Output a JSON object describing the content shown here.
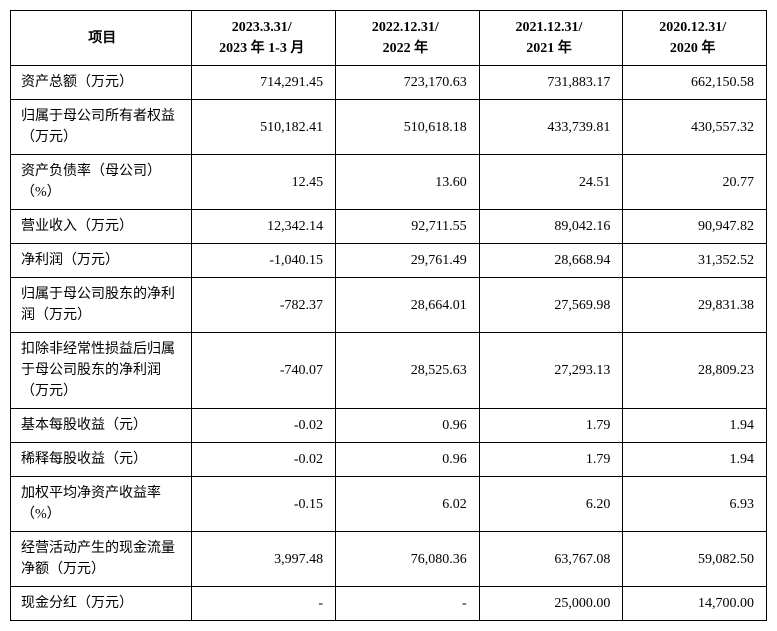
{
  "table": {
    "columns": [
      "项目",
      "2023.3.31/\n2023 年 1-3 月",
      "2022.12.31/\n2022 年",
      "2021.12.31/\n2021 年",
      "2020.12.31/\n2020 年"
    ],
    "rows": [
      {
        "label": "资产总额（万元）",
        "values": [
          "714,291.45",
          "723,170.63",
          "731,883.17",
          "662,150.58"
        ]
      },
      {
        "label": "归属于母公司所有者权益（万元）",
        "values": [
          "510,182.41",
          "510,618.18",
          "433,739.81",
          "430,557.32"
        ]
      },
      {
        "label": "资产负债率（母公司）（%）",
        "values": [
          "12.45",
          "13.60",
          "24.51",
          "20.77"
        ]
      },
      {
        "label": "营业收入（万元）",
        "values": [
          "12,342.14",
          "92,711.55",
          "89,042.16",
          "90,947.82"
        ]
      },
      {
        "label": "净利润（万元）",
        "values": [
          "-1,040.15",
          "29,761.49",
          "28,668.94",
          "31,352.52"
        ]
      },
      {
        "label": "归属于母公司股东的净利润（万元）",
        "values": [
          "-782.37",
          "28,664.01",
          "27,569.98",
          "29,831.38"
        ]
      },
      {
        "label": "扣除非经常性损益后归属于母公司股东的净利润（万元）",
        "values": [
          "-740.07",
          "28,525.63",
          "27,293.13",
          "28,809.23"
        ]
      },
      {
        "label": "基本每股收益（元）",
        "values": [
          "-0.02",
          "0.96",
          "1.79",
          "1.94"
        ]
      },
      {
        "label": "稀释每股收益（元）",
        "values": [
          "-0.02",
          "0.96",
          "1.79",
          "1.94"
        ]
      },
      {
        "label": "加权平均净资产收益率（%）",
        "values": [
          "-0.15",
          "6.02",
          "6.20",
          "6.93"
        ]
      },
      {
        "label": "经营活动产生的现金流量净额（万元）",
        "values": [
          "3,997.48",
          "76,080.36",
          "63,767.08",
          "59,082.50"
        ]
      },
      {
        "label": "现金分红（万元）",
        "values": [
          "-",
          "-",
          "25,000.00",
          "14,700.00"
        ]
      }
    ],
    "border_color": "#000000",
    "background_color": "#ffffff",
    "font_size": 14,
    "header_font_weight": "bold"
  }
}
